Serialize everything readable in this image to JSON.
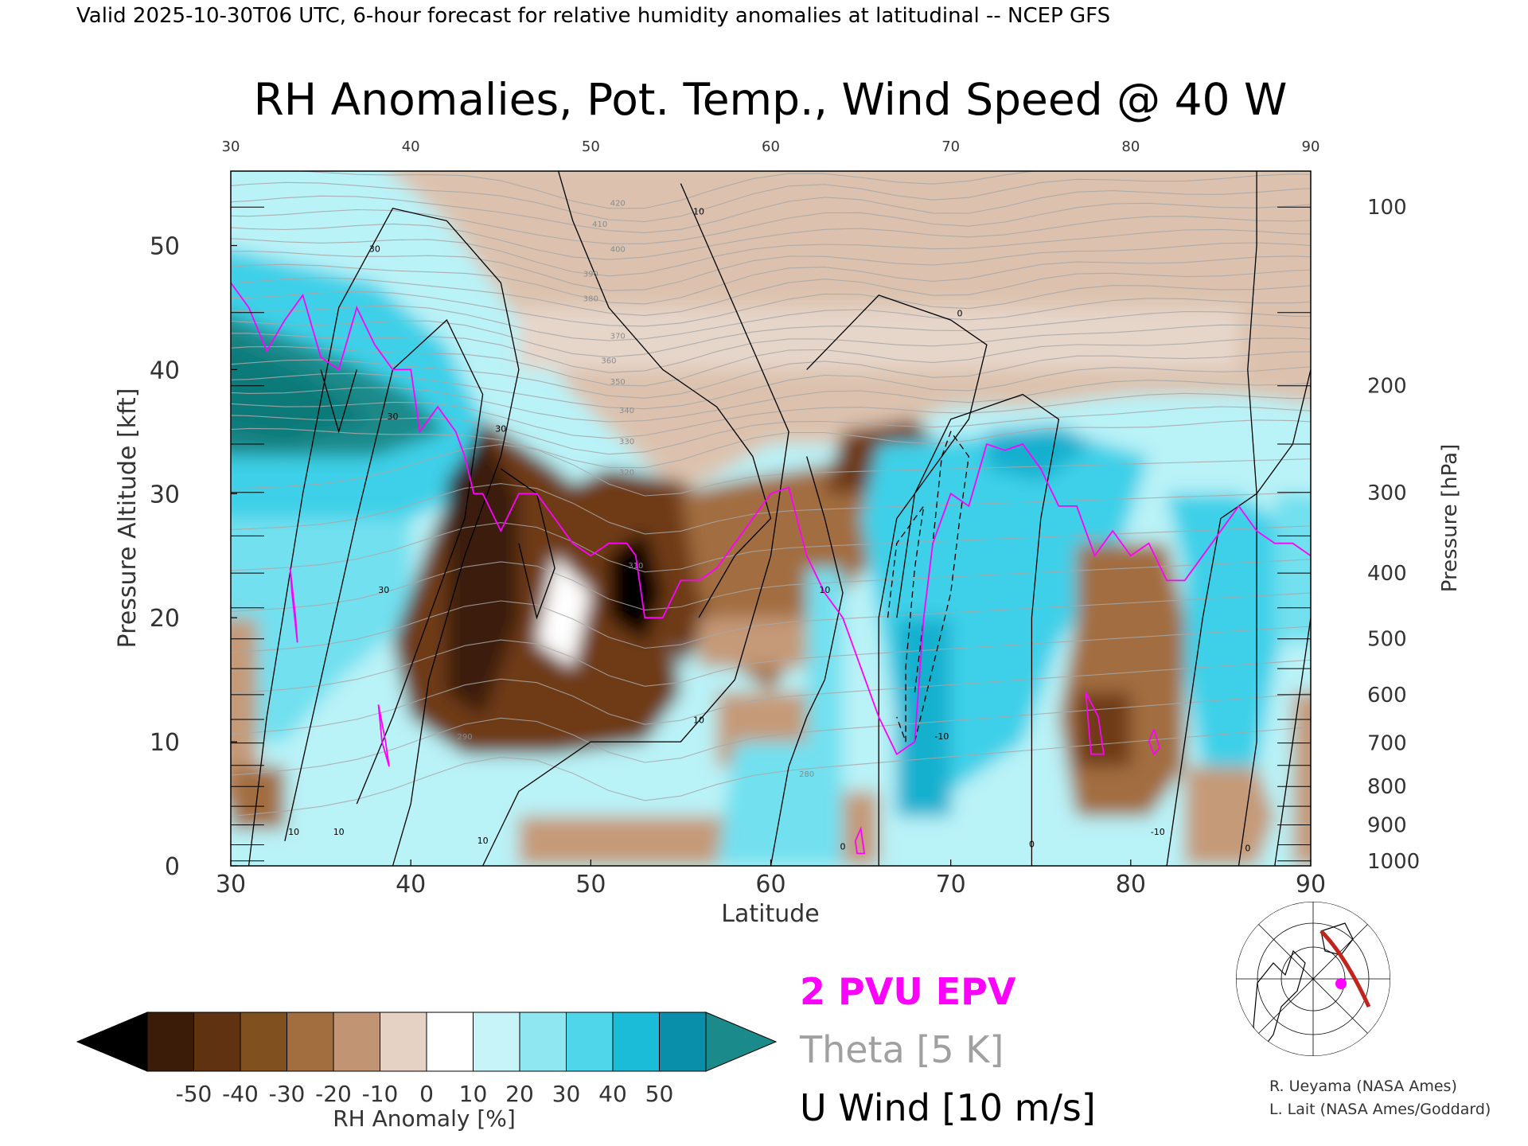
{
  "header": "Valid 2025-10-30T06 UTC, 6-hour forecast for relative humidity anomalies at latitudinal -- NCEP GFS",
  "chart_data": {
    "type": "heatmap",
    "title": "RH Anomalies, Pot. Temp., Wind Speed @ 40 W",
    "xlabel": "Latitude",
    "ylabel": "Pressure Altitude [kft]",
    "ylabel_right": "Pressure [hPa]",
    "xlim": [
      30,
      90
    ],
    "ylim": [
      0,
      56
    ],
    "x_ticks": [
      "30",
      "40",
      "50",
      "60",
      "70",
      "80",
      "90"
    ],
    "y_ticks": [
      "0",
      "10",
      "20",
      "30",
      "40",
      "50"
    ],
    "pressure_ticks": [
      {
        "label": "1000",
        "kft": 0.4
      },
      {
        "label": "900",
        "kft": 3.3
      },
      {
        "label": "800",
        "kft": 6.4
      },
      {
        "label": "700",
        "kft": 9.9
      },
      {
        "label": "600",
        "kft": 13.8
      },
      {
        "label": "500",
        "kft": 18.3
      },
      {
        "label": "400",
        "kft": 23.6
      },
      {
        "label": "300",
        "kft": 30.1
      },
      {
        "label": "200",
        "kft": 38.7
      },
      {
        "label": "100",
        "kft": 53.1
      }
    ],
    "colorbar": {
      "label": "RH Anomaly [%]",
      "ticks": [
        "-50",
        "-40",
        "-30",
        "-20",
        "-10",
        "0",
        "10",
        "20",
        "30",
        "40",
        "50"
      ],
      "colors": [
        "#000000",
        "#3a1c08",
        "#5f3212",
        "#81501f",
        "#a26d3f",
        "#c19474",
        "#e6d2c4",
        "#ffffff",
        "#c7f4f8",
        "#8fe7f1",
        "#4fd6ea",
        "#1bbcd8",
        "#0a8fab",
        "#1a8a8a"
      ]
    },
    "legend": [
      {
        "label": "2 PVU EPV",
        "color": "#ff00ff"
      },
      {
        "label": "Theta [5 K]",
        "color": "#a0a0a0"
      },
      {
        "label": "U Wind [10 m/s]",
        "color": "#000000"
      }
    ],
    "theta_labels": [
      {
        "x": 43,
        "y": 10.2,
        "text": "290"
      },
      {
        "x": 62,
        "y": 7.2,
        "text": "280"
      },
      {
        "x": 52.5,
        "y": 24,
        "text": "310"
      },
      {
        "x": 52,
        "y": 31.5,
        "text": "320"
      },
      {
        "x": 52,
        "y": 34,
        "text": "330"
      },
      {
        "x": 52,
        "y": 36.5,
        "text": "340"
      },
      {
        "x": 51.5,
        "y": 38.8,
        "text": "350"
      },
      {
        "x": 51,
        "y": 40.5,
        "text": "360"
      },
      {
        "x": 51.5,
        "y": 42.5,
        "text": "370"
      },
      {
        "x": 50,
        "y": 45.5,
        "text": "380"
      },
      {
        "x": 50,
        "y": 47.5,
        "text": "390"
      },
      {
        "x": 51.5,
        "y": 49.5,
        "text": "400"
      },
      {
        "x": 50.5,
        "y": 51.5,
        "text": "410"
      },
      {
        "x": 51.5,
        "y": 53.2,
        "text": "420"
      }
    ],
    "wind_labels": [
      {
        "x": 39,
        "y": 36,
        "text": "30"
      },
      {
        "x": 45,
        "y": 35,
        "text": "30"
      },
      {
        "x": 38.5,
        "y": 22,
        "text": "30"
      },
      {
        "x": 38,
        "y": 49.5,
        "text": "30"
      },
      {
        "x": 56,
        "y": 11.5,
        "text": "10"
      },
      {
        "x": 63,
        "y": 22,
        "text": "10"
      },
      {
        "x": 56,
        "y": 52.5,
        "text": "10"
      },
      {
        "x": 70.5,
        "y": 44.3,
        "text": "0"
      },
      {
        "x": 74.5,
        "y": 1.5,
        "text": "0"
      },
      {
        "x": 86.5,
        "y": 1.2,
        "text": "0"
      },
      {
        "x": 64,
        "y": 1.3,
        "text": "0"
      },
      {
        "x": 69.5,
        "y": 10.2,
        "text": "-10"
      },
      {
        "x": 81.5,
        "y": 2.5,
        "text": "-10"
      },
      {
        "x": 36,
        "y": 2.5,
        "text": "10"
      },
      {
        "x": 44,
        "y": 1.8,
        "text": "10"
      },
      {
        "x": 33.5,
        "y": 2.5,
        "text": "10"
      }
    ],
    "credits": [
      "R. Ueyama (NASA Ames)",
      "L. Lait (NASA Ames/Goddard)"
    ]
  }
}
